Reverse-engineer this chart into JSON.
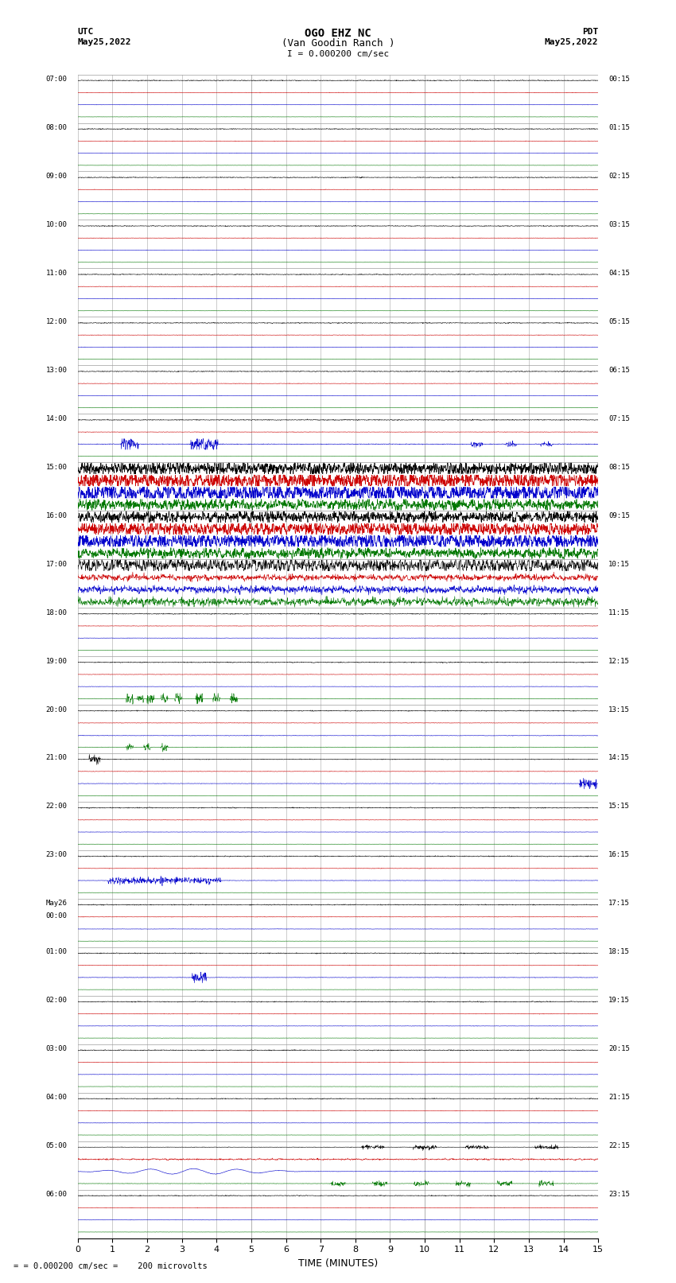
{
  "title_line1": "OGO EHZ NC",
  "title_line2": "(Van Goodin Ranch )",
  "title_scale": "I = 0.000200 cm/sec",
  "left_header_line1": "UTC",
  "left_header_line2": "May25,2022",
  "right_header_line1": "PDT",
  "right_header_line2": "May25,2022",
  "xlabel": "TIME (MINUTES)",
  "footer": "= 0.000200 cm/sec =    200 microvolts",
  "xlim": [
    0,
    15
  ],
  "xticks": [
    0,
    1,
    2,
    3,
    4,
    5,
    6,
    7,
    8,
    9,
    10,
    11,
    12,
    13,
    14,
    15
  ],
  "background_color": "#ffffff",
  "grid_color": "#999999",
  "trace_colors": [
    "#000000",
    "#cc0000",
    "#0000cc",
    "#007700"
  ],
  "utc_labels": [
    "07:00",
    "08:00",
    "09:00",
    "10:00",
    "11:00",
    "12:00",
    "13:00",
    "14:00",
    "15:00",
    "16:00",
    "17:00",
    "18:00",
    "19:00",
    "20:00",
    "21:00",
    "22:00",
    "23:00",
    "May26\n00:00",
    "01:00",
    "02:00",
    "03:00",
    "04:00",
    "05:00",
    "06:00"
  ],
  "pdt_labels": [
    "00:15",
    "01:15",
    "02:15",
    "03:15",
    "04:15",
    "05:15",
    "06:15",
    "07:15",
    "08:15",
    "09:15",
    "10:15",
    "11:15",
    "12:15",
    "13:15",
    "14:15",
    "15:15",
    "16:15",
    "17:15",
    "18:15",
    "19:15",
    "20:15",
    "21:15",
    "22:15",
    "23:15"
  ],
  "num_blocks": 24,
  "traces_per_block": 4,
  "noise_seed": 12345,
  "fig_width": 8.5,
  "fig_height": 16.13,
  "dpi": 100
}
